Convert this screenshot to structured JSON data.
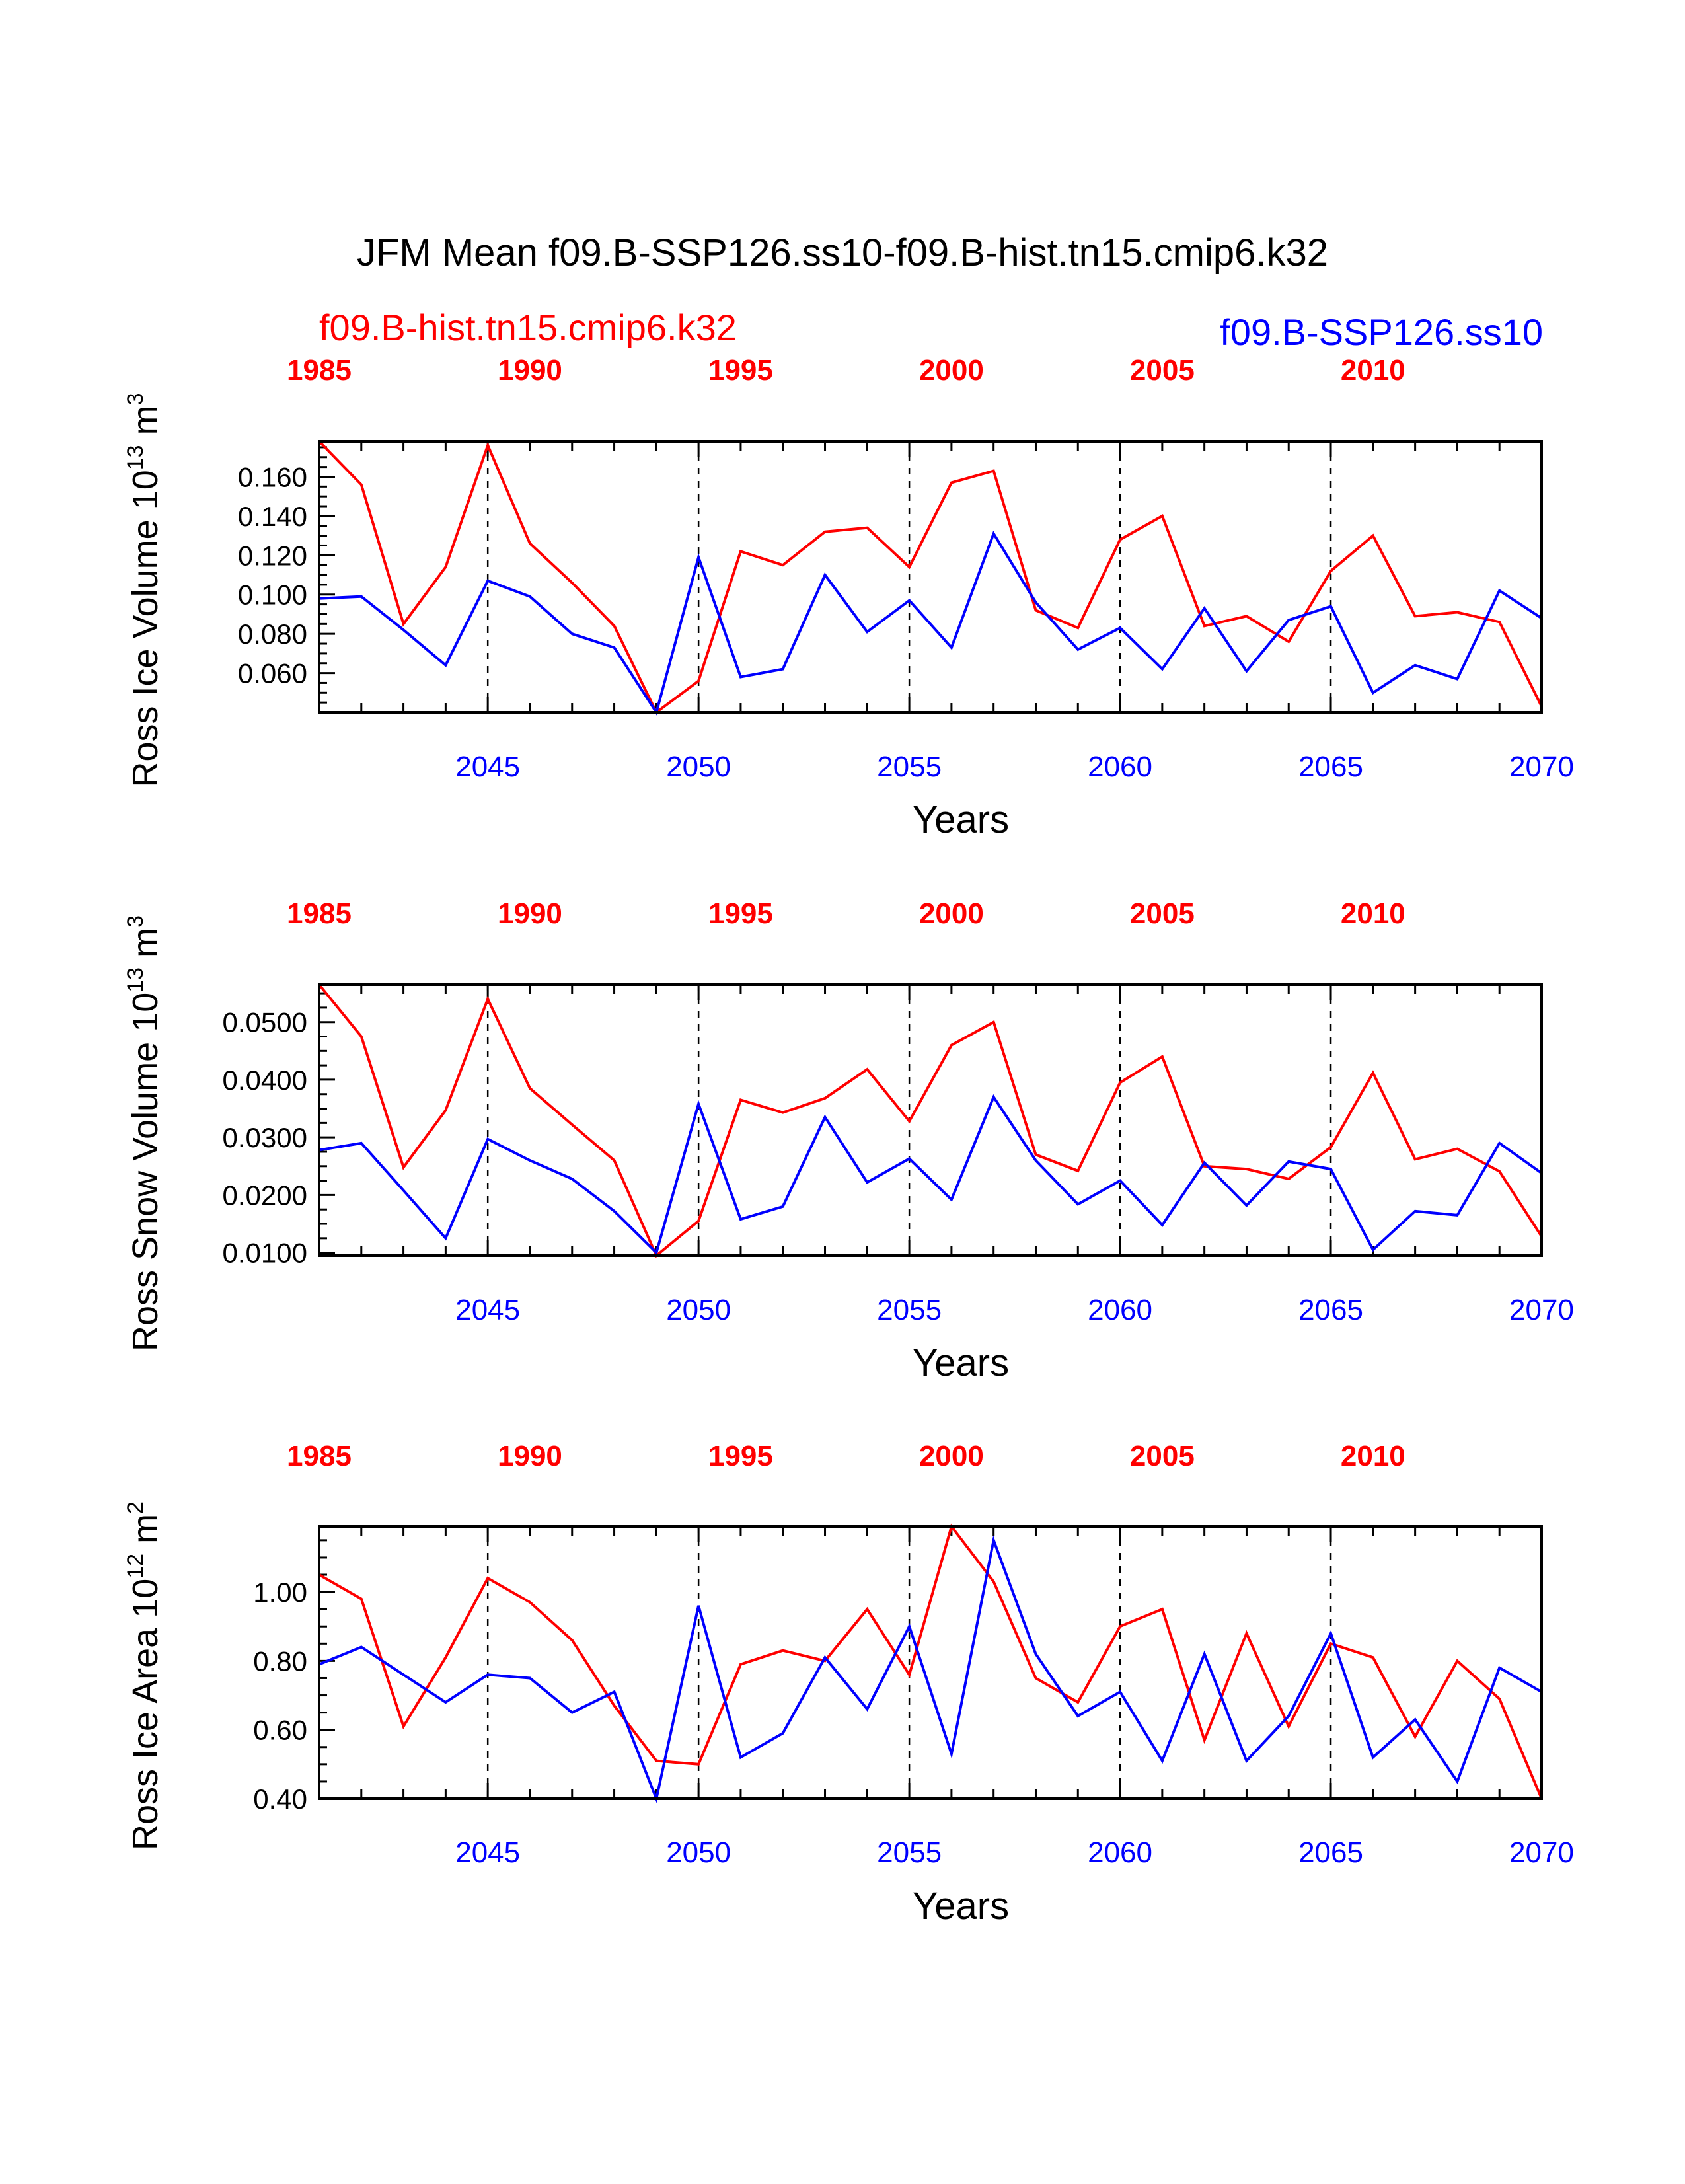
{
  "figure": {
    "title": "JFM Mean f09.B-SSP126.ss10-f09.B-hist.tn15.cmip6.k32",
    "series_label_red": "f09.B-hist.tn15.cmip6.k32",
    "series_label_blue": "f09.B-SSP126.ss10",
    "colors": {
      "red": "#ff0000",
      "blue": "#0000ff",
      "axis": "#000000"
    }
  },
  "chart_data": [
    {
      "type": "line",
      "ylabel": "Ross Ice Volume 10",
      "ylabel_unit_sup": "13",
      "ylabel_unit_tail": " m",
      "ylabel_unit_sup2": "3",
      "xlabel": "Years",
      "xlim": [
        2041,
        2070
      ],
      "ylim": [
        0.04,
        0.178
      ],
      "yticks": [
        0.06,
        0.08,
        0.1,
        0.12,
        0.14,
        0.16
      ],
      "ytick_labels": [
        "0.060",
        "0.080",
        "0.100",
        "0.120",
        "0.140",
        "0.160"
      ],
      "bottom_ticks": [
        2045,
        2050,
        2055,
        2060,
        2065,
        2070
      ],
      "top_ticks_labels": [
        "1985",
        "1990",
        "1995",
        "2000",
        "2005",
        "2010"
      ],
      "dashed_lines_at": [
        2045,
        2050,
        2055,
        2060,
        2065
      ],
      "x": [
        2041,
        2042,
        2043,
        2044,
        2045,
        2046,
        2047,
        2048,
        2049,
        2050,
        2051,
        2052,
        2053,
        2054,
        2055,
        2056,
        2057,
        2058,
        2059,
        2060,
        2061,
        2062,
        2063,
        2064,
        2065,
        2066,
        2067,
        2068,
        2069,
        2070
      ],
      "series": [
        {
          "name": "f09.B-hist.tn15.cmip6.k32",
          "color": "#ff0000",
          "values": [
            0.178,
            0.156,
            0.085,
            0.114,
            0.176,
            0.126,
            0.106,
            0.084,
            0.04,
            0.056,
            0.122,
            0.115,
            0.132,
            0.134,
            0.114,
            0.157,
            0.163,
            0.092,
            0.083,
            0.128,
            0.14,
            0.084,
            0.089,
            0.076,
            0.112,
            0.13,
            0.089,
            0.091,
            0.086,
            0.043
          ]
        },
        {
          "name": "f09.B-SSP126.ss10",
          "color": "#0000ff",
          "values": [
            0.098,
            0.099,
            0.082,
            0.064,
            0.107,
            0.099,
            0.08,
            0.073,
            0.04,
            0.119,
            0.058,
            0.062,
            0.11,
            0.081,
            0.097,
            0.073,
            0.131,
            0.096,
            0.072,
            0.083,
            0.062,
            0.093,
            0.061,
            0.087,
            0.094,
            0.05,
            0.064,
            0.057,
            0.102,
            0.088
          ]
        }
      ]
    },
    {
      "type": "line",
      "ylabel": "Ross Snow Volume 10",
      "ylabel_unit_sup": "13",
      "ylabel_unit_tail": " m",
      "ylabel_unit_sup2": "3",
      "xlabel": "Years",
      "xlim": [
        2041,
        2070
      ],
      "ylim": [
        0.0095,
        0.0565
      ],
      "yticks": [
        0.01,
        0.02,
        0.03,
        0.04,
        0.05
      ],
      "ytick_labels": [
        "0.0100",
        "0.0200",
        "0.0300",
        "0.0400",
        "0.0500"
      ],
      "bottom_ticks": [
        2045,
        2050,
        2055,
        2060,
        2065,
        2070
      ],
      "top_ticks_labels": [
        "1985",
        "1990",
        "1995",
        "2000",
        "2005",
        "2010"
      ],
      "dashed_lines_at": [
        2045,
        2050,
        2055,
        2060,
        2065
      ],
      "x": [
        2041,
        2042,
        2043,
        2044,
        2045,
        2046,
        2047,
        2048,
        2049,
        2050,
        2051,
        2052,
        2053,
        2054,
        2055,
        2056,
        2057,
        2058,
        2059,
        2060,
        2061,
        2062,
        2063,
        2064,
        2065,
        2066,
        2067,
        2068,
        2069,
        2070
      ],
      "series": [
        {
          "name": "f09.B-hist.tn15.cmip6.k32",
          "color": "#ff0000",
          "values": [
            0.0565,
            0.0475,
            0.0248,
            0.0347,
            0.054,
            0.0385,
            0.0322,
            0.026,
            0.0095,
            0.0155,
            0.0365,
            0.0343,
            0.0368,
            0.0418,
            0.0328,
            0.046,
            0.05,
            0.027,
            0.0242,
            0.0395,
            0.044,
            0.025,
            0.0245,
            0.0228,
            0.0283,
            0.0412,
            0.0262,
            0.028,
            0.0241,
            0.0128
          ]
        },
        {
          "name": "f09.B-SSP126.ss10",
          "color": "#0000ff",
          "values": [
            0.0278,
            0.029,
            0.0208,
            0.0125,
            0.0297,
            0.026,
            0.0228,
            0.0172,
            0.01,
            0.0358,
            0.0158,
            0.018,
            0.0335,
            0.0222,
            0.0263,
            0.0192,
            0.037,
            0.026,
            0.0184,
            0.0225,
            0.0148,
            0.0256,
            0.0182,
            0.0258,
            0.0245,
            0.0105,
            0.0172,
            0.0165,
            0.029,
            0.0238
          ]
        }
      ]
    },
    {
      "type": "line",
      "ylabel": "Ross Ice Area 10",
      "ylabel_unit_sup": "12",
      "ylabel_unit_tail": " m",
      "ylabel_unit_sup2": "2",
      "xlabel": "Years",
      "xlim": [
        2041,
        2070
      ],
      "ylim": [
        0.4,
        1.19
      ],
      "yticks": [
        0.4,
        0.6,
        0.8,
        1.0
      ],
      "ytick_labels": [
        "0.40",
        "0.60",
        "0.80",
        "1.00"
      ],
      "bottom_ticks": [
        2045,
        2050,
        2055,
        2060,
        2065,
        2070
      ],
      "top_ticks_labels": [
        "1985",
        "1990",
        "1995",
        "2000",
        "2005",
        "2010"
      ],
      "dashed_lines_at": [
        2045,
        2050,
        2055,
        2060,
        2065
      ],
      "x": [
        2041,
        2042,
        2043,
        2044,
        2045,
        2046,
        2047,
        2048,
        2049,
        2050,
        2051,
        2052,
        2053,
        2054,
        2055,
        2056,
        2057,
        2058,
        2059,
        2060,
        2061,
        2062,
        2063,
        2064,
        2065,
        2066,
        2067,
        2068,
        2069,
        2070
      ],
      "series": [
        {
          "name": "f09.B-hist.tn15.cmip6.k32",
          "color": "#ff0000",
          "values": [
            1.05,
            0.98,
            0.61,
            0.81,
            1.04,
            0.97,
            0.86,
            0.67,
            0.51,
            0.5,
            0.79,
            0.83,
            0.8,
            0.95,
            0.76,
            1.19,
            1.03,
            0.75,
            0.68,
            0.9,
            0.95,
            0.57,
            0.88,
            0.61,
            0.85,
            0.81,
            0.58,
            0.8,
            0.69,
            0.4
          ]
        },
        {
          "name": "f09.B-SSP126.ss10",
          "color": "#0000ff",
          "values": [
            0.79,
            0.84,
            0.76,
            0.68,
            0.76,
            0.75,
            0.65,
            0.71,
            0.4,
            0.96,
            0.52,
            0.59,
            0.81,
            0.66,
            0.9,
            0.53,
            1.15,
            0.82,
            0.64,
            0.71,
            0.51,
            0.82,
            0.51,
            0.64,
            0.88,
            0.52,
            0.63,
            0.45,
            0.78,
            0.71
          ]
        }
      ]
    }
  ]
}
